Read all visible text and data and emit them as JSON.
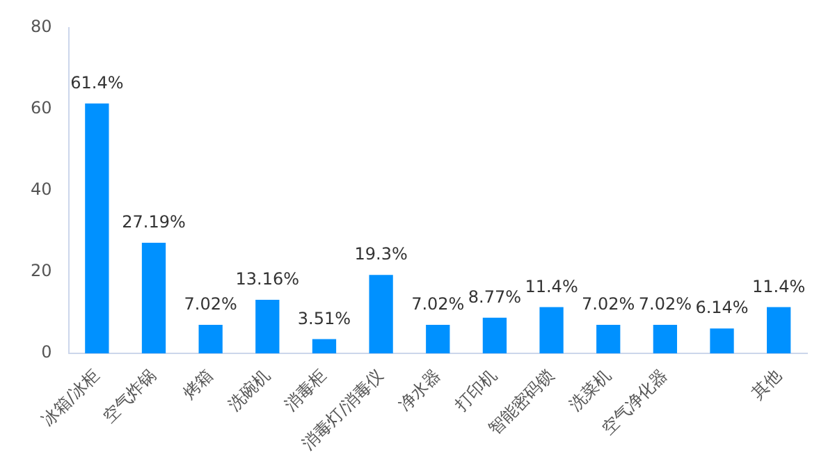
{
  "chart_data": {
    "type": "bar",
    "categories": [
      "冰箱/冰柜",
      "空气炸锅",
      "烤箱",
      "洗碗机",
      "消毒柜",
      "消毒灯/消毒仪",
      "净水器",
      "打印机",
      "智能密码锁",
      "洗菜机",
      "空气净化器",
      null,
      "其他"
    ],
    "values": [
      61.4,
      27.19,
      7.02,
      13.16,
      3.51,
      19.3,
      7.02,
      8.77,
      11.4,
      7.02,
      7.02,
      6.14,
      11.4
    ],
    "value_labels": [
      "61.4%",
      "27.19%",
      "7.02%",
      "13.16%",
      "3.51%",
      "19.3%",
      "7.02%",
      "8.77%",
      "11.4%",
      "7.02%",
      "7.02%",
      "6.14%",
      "11.4%"
    ],
    "color": "#0091ff",
    "ylim": [
      0,
      80
    ],
    "yticks": [
      0,
      20,
      40,
      60,
      80
    ],
    "grid": false,
    "legend": false
  }
}
